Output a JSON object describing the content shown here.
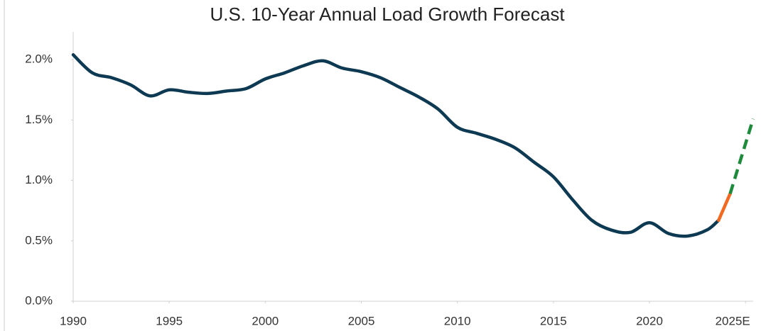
{
  "chart_data": {
    "type": "line",
    "title": "U.S. 10-Year Annual Load Growth Forecast",
    "series": [
      {
        "color": "#0d3a52",
        "style": "solid",
        "x": [
          1990,
          1991,
          1992,
          1993,
          1994,
          1995,
          1996,
          1997,
          1998,
          1999,
          2000,
          2001,
          2002,
          2003,
          2004,
          2005,
          2006,
          2007,
          2008,
          2009,
          2010,
          2011,
          2012,
          2013,
          2014,
          2015,
          2016,
          2017,
          2018,
          2019,
          2020,
          2021,
          2022,
          2023,
          2023.6
        ],
        "values": [
          2.04,
          1.89,
          1.85,
          1.79,
          1.7,
          1.75,
          1.73,
          1.72,
          1.74,
          1.76,
          1.84,
          1.89,
          1.95,
          1.99,
          1.93,
          1.9,
          1.85,
          1.77,
          1.69,
          1.59,
          1.44,
          1.39,
          1.34,
          1.27,
          1.15,
          1.03,
          0.84,
          0.67,
          0.59,
          0.57,
          0.65,
          0.56,
          0.54,
          0.59,
          0.67
        ]
      },
      {
        "color": "#f26a21",
        "style": "solid",
        "x": [
          2023.6,
          2024.2
        ],
        "values": [
          0.67,
          0.89
        ]
      },
      {
        "color": "#1e8a3c",
        "style": "dashed",
        "x": [
          2024.2,
          2025.4
        ],
        "values": [
          0.89,
          1.51
        ]
      }
    ],
    "xlim": [
      1990,
      2025.4
    ],
    "xticks": [
      1990,
      1995,
      2000,
      2005,
      2010,
      2015,
      2020,
      {
        "value": 2025,
        "label": "2025E"
      }
    ],
    "ylim": [
      0,
      2.2
    ],
    "yticks": [
      {
        "value": 0,
        "label": "0.0%"
      },
      {
        "value": 0.5,
        "label": "0.5%"
      },
      {
        "value": 1.0,
        "label": "1.0%"
      },
      {
        "value": 1.5,
        "label": "1.5%"
      },
      {
        "value": 2.0,
        "label": "2.0%"
      }
    ]
  }
}
